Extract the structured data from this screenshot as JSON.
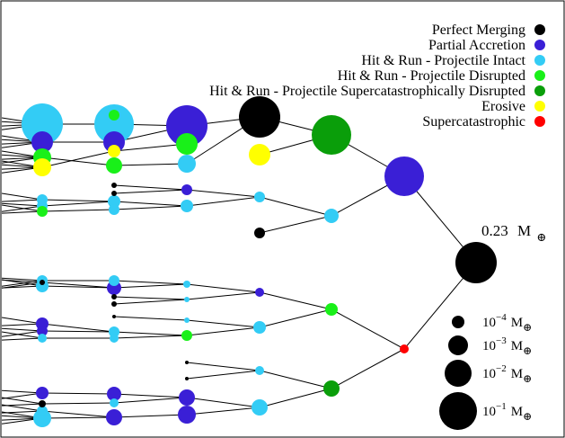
{
  "legend": {
    "items": [
      {
        "key": "perfect_merging",
        "label": "Perfect Merging",
        "color": "#000000"
      },
      {
        "key": "partial_accretion",
        "label": "Partial Accretion",
        "color": "#3a1fd6"
      },
      {
        "key": "hr_intact",
        "label": "Hit & Run - Projectile Intact",
        "color": "#33ccf5"
      },
      {
        "key": "hr_disrupted",
        "label": "Hit & Run - Projectile Disrupted",
        "color": "#19f019"
      },
      {
        "key": "hr_supercat",
        "label": "Hit & Run - Projectile Supercatastrophically Disrupted",
        "color": "#0a9e0a"
      },
      {
        "key": "erosive",
        "label": "Erosive",
        "color": "#ffff00"
      },
      {
        "key": "supercatastrophic",
        "label": "Supercatastrophic",
        "color": "#ff0000"
      }
    ]
  },
  "final_mass": {
    "value": "0.23",
    "unit": "M",
    "symbol": "⊕"
  },
  "scale": {
    "entries": [
      {
        "base": "10",
        "exp": "−4",
        "unit": "M",
        "symbol": "⊕"
      },
      {
        "base": "10",
        "exp": "−3",
        "unit": "M",
        "symbol": "⊕"
      },
      {
        "base": "10",
        "exp": "−2",
        "unit": "M",
        "symbol": "⊕"
      },
      {
        "base": "10",
        "exp": "−1",
        "unit": "M",
        "symbol": "⊕"
      }
    ]
  }
}
